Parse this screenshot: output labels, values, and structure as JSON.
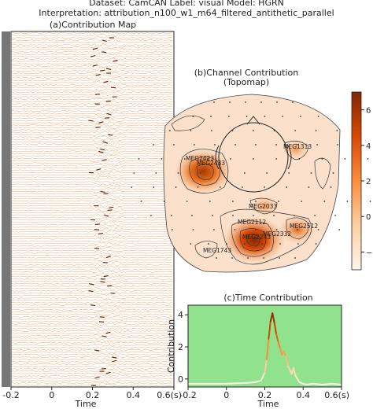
{
  "header": {
    "dataset_line": "Dataset: CamCAN   Label: visual   Model: HGRN",
    "interp_line": "Interpretation: attribution_n100_w1_m64_filtered_antithetic_parallel"
  },
  "chart_data": [
    {
      "id": "a",
      "type": "heatmap",
      "title": "(a)Contribution Map",
      "xlabel": "Time",
      "ylabel": "",
      "xlim": [
        -0.2,
        0.6
      ],
      "x_ticks": [
        "-0.2",
        "0",
        "0.2",
        "0.4",
        "0.6(s)"
      ],
      "x_tick_values": [
        -0.2,
        0.0,
        0.2,
        0.4,
        0.6
      ],
      "channels_approx": 150,
      "high_activity_window_s": [
        0.2,
        0.35
      ],
      "peak_time_s": 0.24
    },
    {
      "id": "b",
      "type": "heatmap",
      "title": "(b)Channel Contribution",
      "subtitle": "(Topomap)",
      "colorbar_ticks": [
        "6",
        "4",
        "2",
        "0",
        "−2"
      ],
      "colorbar_values": [
        6,
        4,
        2,
        0,
        -2
      ],
      "colorbar_range": [
        -3,
        7
      ],
      "labeled_channels": [
        "MEG1313",
        "MEG2423",
        "MEG2433",
        "MEG2033",
        "MEG2112",
        "MEG2512",
        "MEG2332",
        "MEG1743",
        "MEG2243"
      ],
      "hotspots": [
        {
          "channel": "MEG2423",
          "value": 6
        },
        {
          "channel": "MEG2243",
          "value": 7
        },
        {
          "channel": "MEG2512",
          "value": 3
        },
        {
          "channel": "MEG2033",
          "value": 2
        },
        {
          "channel": "MEG1313",
          "value": 1
        }
      ]
    },
    {
      "id": "c",
      "type": "line",
      "title": "(c)Time Contribution",
      "xlabel": "Time",
      "ylabel": "Contribution",
      "xlim": [
        -0.2,
        0.6
      ],
      "ylim": [
        -0.5,
        4.6
      ],
      "x_ticks": [
        "-0.2",
        "0",
        "0.2",
        "0.4",
        "0.6(s)"
      ],
      "x_tick_values": [
        -0.2,
        0.0,
        0.2,
        0.4,
        0.6
      ],
      "y_ticks": [
        "0",
        "2",
        "4"
      ],
      "y_tick_values": [
        0,
        2,
        4
      ],
      "x": [
        -0.2,
        -0.1,
        0.0,
        0.1,
        0.15,
        0.18,
        0.2,
        0.21,
        0.22,
        0.23,
        0.24,
        0.25,
        0.26,
        0.27,
        0.28,
        0.29,
        0.3,
        0.31,
        0.32,
        0.33,
        0.34,
        0.35,
        0.36,
        0.38,
        0.4,
        0.42,
        0.45,
        0.5,
        0.55,
        0.6
      ],
      "y": [
        -0.3,
        -0.3,
        -0.3,
        -0.25,
        -0.2,
        -0.1,
        0.4,
        1.2,
        2.5,
        3.6,
        4.1,
        3.5,
        2.8,
        2.3,
        1.9,
        1.5,
        1.7,
        1.4,
        0.8,
        0.6,
        0.3,
        0.7,
        0.2,
        -0.2,
        -0.3,
        -0.35,
        -0.3,
        -0.35,
        -0.3,
        -0.35
      ]
    }
  ]
}
